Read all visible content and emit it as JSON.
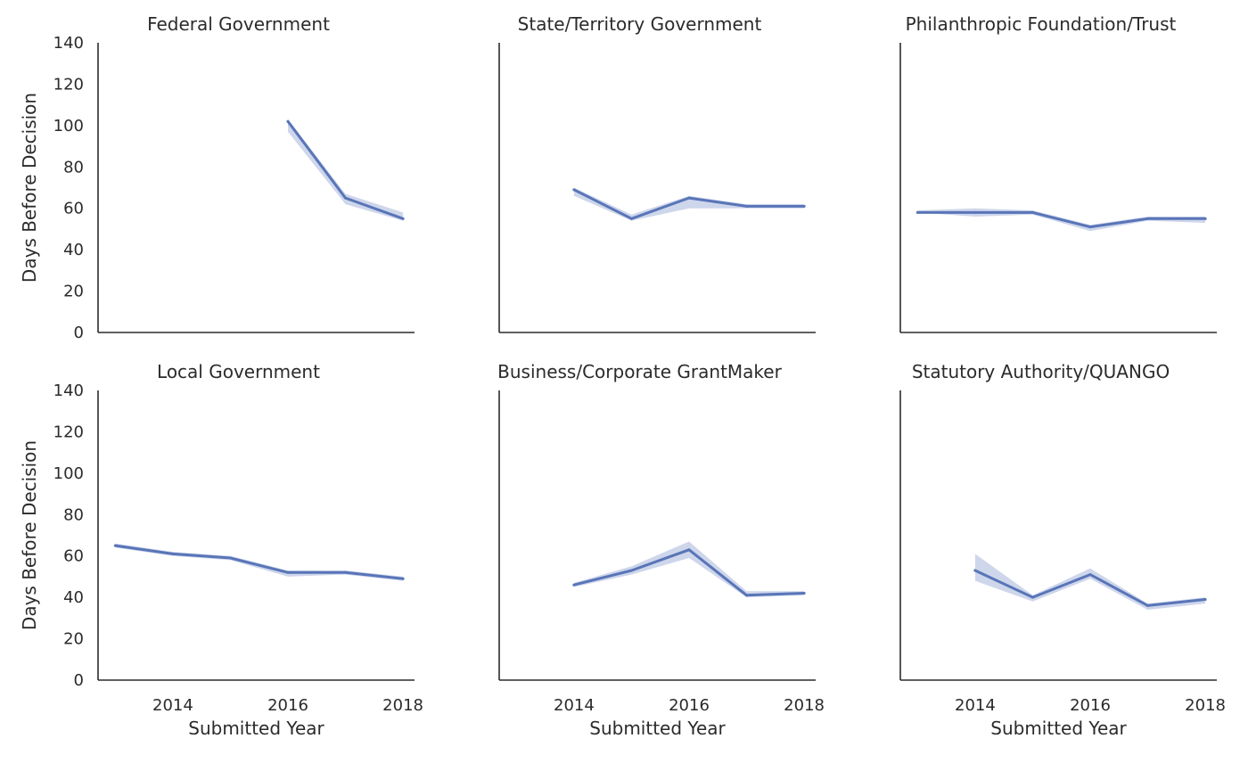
{
  "chart_data": {
    "type": "line",
    "layout": "facet-grid-2x3",
    "shared_y_axis": true,
    "shared_x_axis": true,
    "ylim": [
      0,
      140
    ],
    "yticks": [
      0,
      20,
      40,
      60,
      80,
      100,
      120,
      140
    ],
    "xlim": [
      2012.7,
      2018.2
    ],
    "xticks": [
      2014,
      2016,
      2018
    ],
    "ylabel": "Days Before Decision",
    "xlabel": "Submitted Year",
    "grid": false,
    "legend": "none",
    "colors": {
      "line": "#5975b8",
      "band": "#c5cfe7",
      "axis": "#2b2b2b"
    },
    "panels": [
      {
        "title": "Federal Government",
        "x": [
          2016,
          2017,
          2018
        ],
        "y": [
          102,
          65,
          55
        ],
        "ci_low": [
          97,
          62,
          54
        ],
        "ci_high": [
          103,
          67,
          58
        ]
      },
      {
        "title": "State/Territory Government",
        "x": [
          2014,
          2015,
          2016,
          2017,
          2018
        ],
        "y": [
          69,
          55,
          65,
          61,
          61
        ],
        "ci_low": [
          66,
          54,
          60,
          60,
          60
        ],
        "ci_high": [
          70,
          57,
          66,
          62,
          62
        ]
      },
      {
        "title": "Philanthropic Foundation/Trust",
        "x": [
          2013,
          2014,
          2015,
          2016,
          2017,
          2018
        ],
        "y": [
          58,
          58,
          58,
          51,
          55,
          55
        ],
        "ci_low": [
          58,
          56,
          57,
          49,
          54,
          53
        ],
        "ci_high": [
          59,
          60,
          59,
          52,
          56,
          56
        ]
      },
      {
        "title": "Local Government",
        "x": [
          2013,
          2014,
          2015,
          2016,
          2017,
          2018
        ],
        "y": [
          65,
          61,
          59,
          52,
          52,
          49
        ],
        "ci_low": [
          64,
          60,
          58,
          50,
          51,
          48
        ],
        "ci_high": [
          66,
          62,
          60,
          53,
          53,
          50
        ]
      },
      {
        "title": "Business/Corporate GrantMaker",
        "x": [
          2014,
          2015,
          2016,
          2017,
          2018
        ],
        "y": [
          46,
          53,
          63,
          41,
          42
        ],
        "ci_low": [
          45,
          51,
          59,
          40,
          41
        ],
        "ci_high": [
          47,
          55,
          67,
          43,
          43
        ]
      },
      {
        "title": "Statutory Authority/QUANGO",
        "x": [
          2014,
          2015,
          2016,
          2017,
          2018
        ],
        "y": [
          53,
          40,
          51,
          36,
          39
        ],
        "ci_low": [
          48,
          38,
          49,
          34,
          37
        ],
        "ci_high": [
          61,
          41,
          54,
          37,
          40
        ]
      }
    ]
  }
}
